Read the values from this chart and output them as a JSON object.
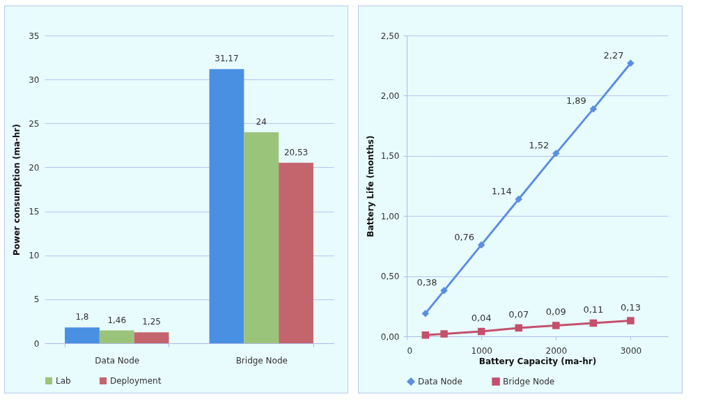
{
  "chart_data": [
    {
      "type": "bar",
      "categories": [
        "Data Node",
        "Bridge Node"
      ],
      "ylabel": "Power consumption (ma-hr)",
      "ylim": [
        0,
        35
      ],
      "yticks": [
        0,
        5,
        10,
        15,
        20,
        25,
        30,
        35
      ],
      "grid": "y",
      "legend": "bottom",
      "series": [
        {
          "color": "#4a90e2",
          "values": [
            1.8,
            31.17
          ],
          "value_labels": [
            "1,8",
            "31,17"
          ]
        },
        {
          "name": "Lab",
          "color": "#9bc47b",
          "values": [
            1.46,
            24
          ],
          "value_labels": [
            "1,46",
            "24"
          ]
        },
        {
          "name": "Deployment",
          "color": "#c4646c",
          "values": [
            1.25,
            20.53
          ],
          "value_labels": [
            "1,25",
            "20,53"
          ]
        }
      ]
    },
    {
      "type": "line",
      "xlabel": "Battery Capacity (ma-hr)",
      "ylabel": "Battery Life (months)",
      "xlim": [
        0,
        3500
      ],
      "xticks": [
        0,
        1000,
        2000,
        3000
      ],
      "ylim": [
        0,
        2.5
      ],
      "yticks": [
        {
          "value": 0,
          "label": "0,00"
        },
        {
          "value": 0.5,
          "label": "0,50"
        },
        {
          "value": 1,
          "label": "1,00"
        },
        {
          "value": 1.5,
          "label": "1,50"
        },
        {
          "value": 2,
          "label": "2,00"
        },
        {
          "value": 2.5,
          "label": "2,50"
        }
      ],
      "grid": "y",
      "legend": "bottom",
      "line_style": "solid",
      "x": [
        250,
        500,
        1000,
        1500,
        2000,
        2500,
        3000
      ],
      "series": [
        {
          "name": "Data Node",
          "color": "#5b8ee0",
          "marker": "diamond",
          "values": [
            0.19,
            0.38,
            0.76,
            1.14,
            1.52,
            1.89,
            2.27
          ],
          "value_labels": [
            null,
            "0,38",
            "0,76",
            "1,14",
            "1,52",
            "1,89",
            "2,27"
          ]
        },
        {
          "name": "Bridge Node",
          "color": "#c4506c",
          "marker": "square",
          "values": [
            0.01,
            0.02,
            0.04,
            0.07,
            0.09,
            0.11,
            0.13
          ],
          "value_labels": [
            null,
            null,
            "0,04",
            "0,07",
            "0,09",
            "0,11",
            "0,13"
          ]
        }
      ]
    }
  ]
}
